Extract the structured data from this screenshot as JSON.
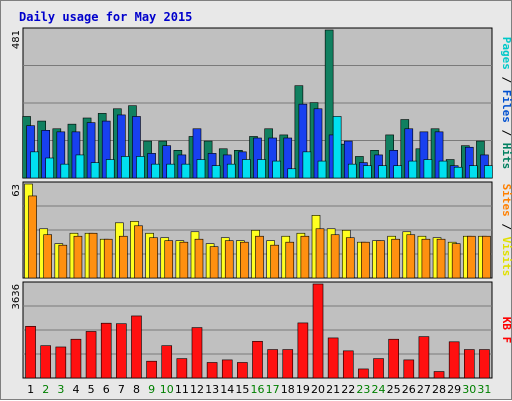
{
  "chart_data": {
    "type": "bar",
    "title": "Daily usage for May 2015",
    "categories": [
      "1",
      "2",
      "3",
      "4",
      "5",
      "6",
      "7",
      "8",
      "9",
      "10",
      "11",
      "12",
      "13",
      "14",
      "15",
      "16",
      "17",
      "18",
      "19",
      "20",
      "21",
      "22",
      "23",
      "24",
      "25",
      "26",
      "27",
      "28",
      "29",
      "30",
      "31"
    ],
    "weekend_days": [
      "2",
      "3",
      "9",
      "10",
      "16",
      "17",
      "23",
      "24",
      "30",
      "31"
    ],
    "panels": [
      {
        "id": "pages-files-hits",
        "ymax": 481,
        "ytick_label": "481",
        "legend": [
          {
            "text": "Pages",
            "color": "#00c8c8"
          },
          {
            "text": " / ",
            "color": "#000000"
          },
          {
            "text": "Files",
            "color": "#0050d0"
          },
          {
            "text": " / ",
            "color": "#000000"
          },
          {
            "text": "Hits",
            "color": "#008060"
          }
        ],
        "series": [
          {
            "name": "Hits",
            "color": "#108060",
            "values": [
              200,
              185,
              160,
              175,
              195,
              210,
              225,
              235,
              120,
              120,
              90,
              135,
              120,
              95,
              90,
              135,
              160,
              140,
              300,
              245,
              481,
              110,
              70,
              90,
              140,
              190,
              95,
              160,
              60,
              105,
              120
            ]
          },
          {
            "name": "Files",
            "color": "#1840f0",
            "values": [
              170,
              155,
              150,
              150,
              180,
              185,
              205,
              200,
              80,
              105,
              75,
              160,
              80,
              75,
              85,
              130,
              130,
              130,
              240,
              225,
              140,
              120,
              50,
              75,
              90,
              160,
              150,
              150,
              40,
              100,
              75
            ]
          },
          {
            "name": "Pages",
            "color": "#00e0f0",
            "values": [
              85,
              65,
              45,
              75,
              50,
              60,
              70,
              70,
              45,
              45,
              45,
              60,
              40,
              45,
              60,
              60,
              55,
              30,
              85,
              55,
              200,
              45,
              40,
              40,
              40,
              55,
              60,
              55,
              35,
              40,
              40
            ]
          }
        ]
      },
      {
        "id": "sites-visits",
        "ymax": 63,
        "ytick_label": "63",
        "legend": [
          {
            "text": "Sites",
            "color": "#ff8000"
          },
          {
            "text": " / ",
            "color": "#000000"
          },
          {
            "text": "Visits",
            "color": "#e0e000"
          }
        ],
        "series": [
          {
            "name": "Visits",
            "color": "#ffff20",
            "values": [
              63,
              33,
              23,
              30,
              30,
              26,
              37,
              38,
              30,
              27,
              25,
              31,
              23,
              27,
              25,
              32,
              25,
              28,
              30,
              42,
              33,
              32,
              24,
              25,
              28,
              31,
              28,
              27,
              24,
              28,
              28
            ]
          },
          {
            "name": "Sites",
            "color": "#ff9010",
            "values": [
              55,
              29,
              22,
              28,
              30,
              26,
              28,
              35,
              27,
              25,
              24,
              26,
              21,
              25,
              24,
              28,
              22,
              24,
              28,
              33,
              29,
              27,
              24,
              25,
              26,
              29,
              26,
              26,
              23,
              28,
              28
            ]
          }
        ]
      },
      {
        "id": "kbf",
        "ymax": 3636,
        "ytick_label": "3636",
        "legend": [
          {
            "text": "KB F",
            "color": "#ff0000"
          }
        ],
        "series": [
          {
            "name": "KB F",
            "color": "#ff1010",
            "values": [
              2000,
              1250,
              1200,
              1500,
              1800,
              2120,
              2100,
              2400,
              650,
              1250,
              750,
              1950,
              600,
              700,
              600,
              1420,
              1100,
              1100,
              2130,
              3636,
              1550,
              1050,
              350,
              750,
              1500,
              700,
              1600,
              250,
              1400,
              1100,
              1100
            ]
          }
        ]
      }
    ]
  }
}
